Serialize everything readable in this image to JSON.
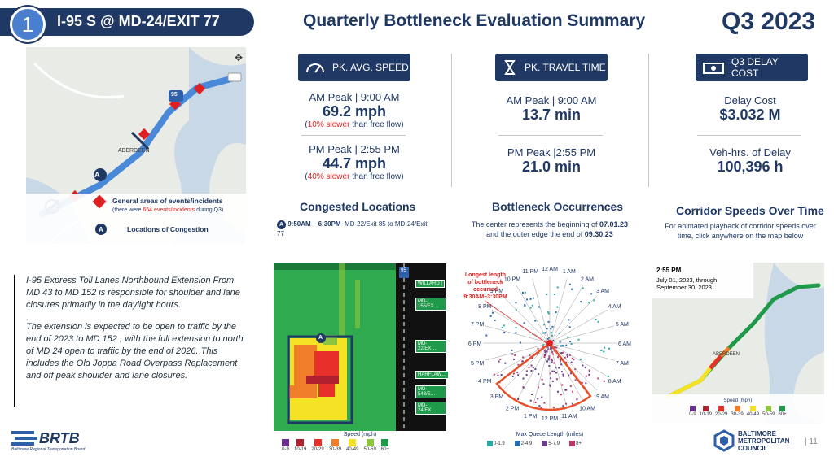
{
  "header": {
    "number": "1",
    "route": "I-95 S @ MD-24/EXIT 77",
    "title": "Quarterly Bottleneck Evaluation Summary",
    "quarter": "Q3 2023"
  },
  "map1": {
    "legend_title": "General areas of events/incidents",
    "legend_note_prefix": "(there were ",
    "legend_note_count": "654 events/incidents",
    "legend_note_suffix": " during Q3)",
    "congestion_label": "Locations of Congestion",
    "marker_a": "A",
    "place": "ABERDEEN",
    "shield_95": "95"
  },
  "speed_card": {
    "header": "PK. AVG. SPEED",
    "am_label": "AM Peak | 9:00 AM",
    "am_value": "69.2 mph",
    "am_note_red": "10% slower",
    "am_note_rest": " than free flow",
    "pm_label": "PM Peak | 2:55 PM",
    "pm_value": "44.7 mph",
    "pm_note_red": "40% slower",
    "pm_note_rest": " than free flow"
  },
  "time_card": {
    "header": "PK. TRAVEL TIME",
    "am_label": "AM Peak | 9:00 AM",
    "am_value": "13.7 min",
    "pm_label": "PM Peak |2:55 PM",
    "pm_value": "21.0 min"
  },
  "cost_card": {
    "header": "Q3 DELAY COST",
    "cost_label": "Delay Cost",
    "cost_value": "$3.032 M",
    "veh_label": "Veh-hrs. of Delay",
    "veh_value": "100,396 h"
  },
  "congested": {
    "title": "Congested Locations",
    "marker": "A",
    "time": "9:50AM – 6:30PM",
    "location": "MD-22/Exit 85 to MD-24/Exit 77"
  },
  "bottleneck": {
    "title": "Bottleneck Occurrences",
    "line1": "The center represents the beginning of ",
    "date1": "07.01.23",
    "line2": "and the outer edge the end of ",
    "date2": "09.30.23",
    "callout": "Longest length of bottleneck occurred 9:30AM–3:30PM"
  },
  "corridor": {
    "title": "Corridor Speeds Over Time",
    "desc": "For animated playback of corridor speeds over time, click anywhere on the map below",
    "time": "2:55 PM",
    "date_range": "July 01, 2023, through September 30, 2023",
    "legend_title": "Speed (mph)",
    "place": "ABERDEEN"
  },
  "heatmap": {
    "exits": [
      "WILLARD (",
      "MD-155/EX…",
      "MD-22/EX…",
      "HARFLAW…",
      "MD-543/E…",
      "MD-24/EX…"
    ],
    "shield": "95",
    "marker": "A"
  },
  "speed_legend": {
    "title": "Speed (mph)",
    "bins": [
      "0-9",
      "10-19",
      "20-29",
      "30-39",
      "40-49",
      "50-59",
      "60+"
    ],
    "colors": [
      "#6b2f8f",
      "#b0202e",
      "#e8302a",
      "#f07d2a",
      "#f5e225",
      "#8cc63f",
      "#1e9a4a"
    ]
  },
  "queue_legend": {
    "title": "Max Queue Length (miles)",
    "bins": [
      "0-1.9",
      "2-4.9",
      "5-7.9",
      "8+"
    ],
    "colors": [
      "#2aa8a4",
      "#2a6bb0",
      "#6b3d8c",
      "#c0356b"
    ]
  },
  "clock_labels": [
    "12 AM",
    "1 AM",
    "2 AM",
    "3 AM",
    "4 AM",
    "5 AM",
    "6 AM",
    "7 AM",
    "8 AM",
    "9 AM",
    "10 AM",
    "11 AM",
    "12 PM",
    "1 PM",
    "2 PM",
    "3 PM",
    "4 PM",
    "5 PM",
    "6 PM",
    "7 PM",
    "8 PM",
    "9 PM",
    "10 PM",
    "11 PM"
  ],
  "textbox": {
    "p1": "I-95 Express Toll Lanes Northbound Extension From MD 43 to MD 152 is responsible for shoulder and lane closures primarily in the daylight hours.",
    "dot": ".",
    "p2": "The extension is expected to be open to traffic by the end of 2023 to MD 152 , with the full extension to north of MD 24 open to traffic by the end of 2026. This includes the Old Joppa Road Overpass Replacement and off peak shoulder and lane closures."
  },
  "footer": {
    "brtb": "BRTB",
    "brtb_sub": "Baltimore Regional Transportation Board",
    "bmc1": "BALTIMORE",
    "bmc2": "METROPOLITAN",
    "bmc3": "COUNCIL",
    "page": "11"
  }
}
